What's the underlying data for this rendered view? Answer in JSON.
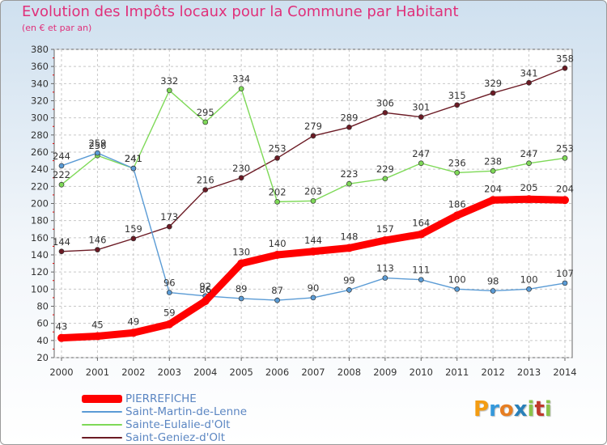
{
  "title": "Evolution des Impôts locaux pour la Commune par Habitant",
  "subtitle": "(en € et par an)",
  "brand": {
    "letters": [
      "P",
      "r",
      "o",
      "x",
      "i",
      "t",
      "i"
    ],
    "colors": [
      "#f39c12",
      "#3498db",
      "#e67e22",
      "#2980b9",
      "#8bc34a",
      "#c0392b",
      "#8bc34a"
    ]
  },
  "chart_data": {
    "type": "line",
    "x": [
      2000,
      2001,
      2002,
      2003,
      2004,
      2005,
      2006,
      2007,
      2008,
      2009,
      2010,
      2011,
      2012,
      2013,
      2014
    ],
    "ylim": [
      20,
      380
    ],
    "yticks": [
      20,
      40,
      60,
      80,
      100,
      120,
      140,
      160,
      180,
      200,
      220,
      240,
      260,
      280,
      300,
      320,
      340,
      360,
      380
    ],
    "grid": true,
    "legend_position": "bottom-left",
    "series": [
      {
        "name": "Saint-Geniez-d'Olt",
        "color": "#6b1a24",
        "values": [
          144,
          146,
          159,
          173,
          216,
          230,
          253,
          279,
          289,
          306,
          301,
          315,
          329,
          341,
          358
        ]
      },
      {
        "name": "Sainte-Eulalie-d'Olt",
        "color": "#7ed957",
        "values": [
          222,
          256,
          241,
          332,
          295,
          334,
          202,
          203,
          223,
          229,
          247,
          236,
          238,
          247,
          253
        ]
      },
      {
        "name": "Saint-Martin-de-Lenne",
        "color": "#5a9bd5",
        "values": [
          244,
          259,
          241,
          96,
          92,
          89,
          87,
          90,
          99,
          113,
          111,
          100,
          98,
          100,
          107
        ]
      },
      {
        "name": "PIERREFICHE",
        "color": "#ff0000",
        "values": [
          43,
          45,
          49,
          59,
          86,
          130,
          140,
          144,
          148,
          157,
          164,
          186,
          204,
          205,
          204
        ]
      }
    ],
    "legend": [
      "PIERREFICHE",
      "Saint-Martin-de-Lenne",
      "Sainte-Eulalie-d'Olt",
      "Saint-Geniez-d'Olt"
    ]
  }
}
